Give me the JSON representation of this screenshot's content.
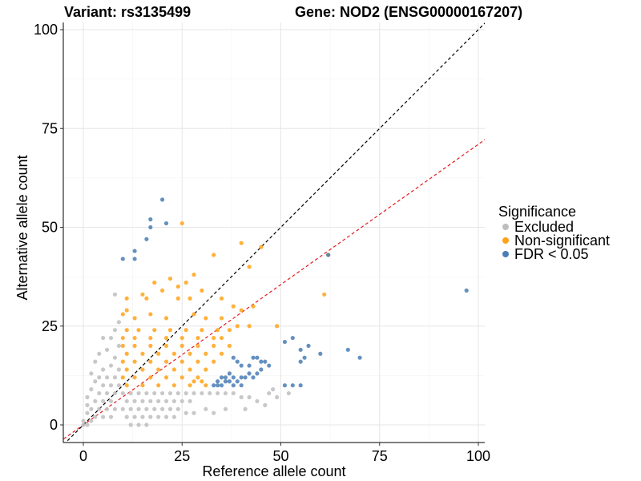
{
  "chart_data": {
    "type": "scatter",
    "title_left": "Variant: rs3135499",
    "title_right": "Gene: NOD2 (ENSG00000167207)",
    "xlabel": "Reference allele count",
    "ylabel": "Alternative allele count",
    "xlim": [
      -5,
      102
    ],
    "ylim": [
      -5,
      102
    ],
    "xticks": [
      0,
      25,
      50,
      75,
      100
    ],
    "yticks": [
      0,
      25,
      50,
      75,
      100
    ],
    "grid": true,
    "legend": {
      "title": "Significance",
      "position": "right",
      "entries": [
        {
          "label": "Excluded",
          "color": "#BEBEBE"
        },
        {
          "label": "Non-significant",
          "color": "#FFA31A"
        },
        {
          "label": "FDR < 0.05",
          "color": "#4A7EB5"
        }
      ]
    },
    "reference_lines": [
      {
        "name": "identity",
        "slope": 1.0,
        "intercept": 0,
        "color": "#000000",
        "style": "dashed"
      },
      {
        "name": "expected-ratio",
        "slope": 0.71,
        "intercept": 0,
        "color": "#E41A1C",
        "style": "dashed"
      }
    ],
    "series": [
      {
        "name": "FDR < 0.05",
        "color": "#4A7EB5",
        "points": [
          [
            20,
            57
          ],
          [
            17,
            52
          ],
          [
            21,
            51
          ],
          [
            17,
            50
          ],
          [
            16,
            47
          ],
          [
            13,
            44
          ],
          [
            13,
            42
          ],
          [
            10,
            42
          ],
          [
            97,
            34
          ],
          [
            62,
            43
          ],
          [
            57,
            20
          ],
          [
            53,
            22
          ],
          [
            55,
            19
          ],
          [
            55,
            16
          ],
          [
            56,
            17
          ],
          [
            60,
            18
          ],
          [
            67,
            19
          ],
          [
            70,
            17
          ],
          [
            51,
            21
          ],
          [
            53,
            10
          ],
          [
            51,
            10
          ],
          [
            55,
            10
          ],
          [
            38,
            17
          ],
          [
            39,
            16
          ],
          [
            40,
            15
          ],
          [
            42,
            15
          ],
          [
            43,
            17
          ],
          [
            44,
            17
          ],
          [
            45,
            16
          ],
          [
            46,
            16
          ],
          [
            47,
            15
          ],
          [
            45,
            14
          ],
          [
            44,
            13
          ],
          [
            42,
            13
          ],
          [
            43,
            12
          ],
          [
            41,
            12
          ],
          [
            33,
            10
          ],
          [
            34,
            10
          ],
          [
            35,
            10
          ],
          [
            36,
            11
          ],
          [
            37,
            11
          ],
          [
            38,
            12
          ],
          [
            39,
            11
          ],
          [
            40,
            12
          ],
          [
            38,
            10
          ],
          [
            40,
            10
          ],
          [
            37,
            13
          ],
          [
            36,
            12
          ],
          [
            35,
            12
          ],
          [
            34,
            11
          ]
        ]
      },
      {
        "name": "Non-significant",
        "color": "#FFA31A",
        "points": [
          [
            25,
            51
          ],
          [
            40,
            46
          ],
          [
            45,
            45
          ],
          [
            42,
            40
          ],
          [
            33,
            43
          ],
          [
            62,
            43
          ],
          [
            61,
            33
          ],
          [
            22,
            37
          ],
          [
            18,
            36
          ],
          [
            28,
            38
          ],
          [
            26,
            36
          ],
          [
            24,
            35
          ],
          [
            20,
            34
          ],
          [
            30,
            34
          ],
          [
            35,
            32
          ],
          [
            27,
            32
          ],
          [
            16,
            32
          ],
          [
            11,
            32
          ],
          [
            15,
            33
          ],
          [
            24,
            32
          ],
          [
            38,
            30
          ],
          [
            40,
            29
          ],
          [
            43,
            30
          ],
          [
            49,
            25
          ],
          [
            42,
            25
          ],
          [
            39,
            25
          ],
          [
            35,
            27
          ],
          [
            31,
            27
          ],
          [
            28,
            28
          ],
          [
            21,
            27
          ],
          [
            17,
            28
          ],
          [
            13,
            27
          ],
          [
            10,
            28
          ],
          [
            11,
            29
          ],
          [
            37,
            24
          ],
          [
            34,
            24
          ],
          [
            30,
            24
          ],
          [
            26,
            24
          ],
          [
            22,
            24
          ],
          [
            18,
            24
          ],
          [
            14,
            24
          ],
          [
            11,
            24
          ],
          [
            35,
            22
          ],
          [
            33,
            22
          ],
          [
            29,
            22
          ],
          [
            25,
            22
          ],
          [
            21,
            22
          ],
          [
            17,
            22
          ],
          [
            13,
            22
          ],
          [
            10,
            22
          ],
          [
            37,
            20
          ],
          [
            33,
            20
          ],
          [
            29,
            20
          ],
          [
            25,
            20
          ],
          [
            21,
            20
          ],
          [
            17,
            20
          ],
          [
            13,
            20
          ],
          [
            10,
            20
          ],
          [
            35,
            18
          ],
          [
            31,
            18
          ],
          [
            27,
            18
          ],
          [
            23,
            18
          ],
          [
            19,
            18
          ],
          [
            15,
            18
          ],
          [
            11,
            18
          ],
          [
            33,
            16
          ],
          [
            29,
            16
          ],
          [
            25,
            16
          ],
          [
            21,
            16
          ],
          [
            17,
            16
          ],
          [
            13,
            16
          ],
          [
            10,
            16
          ],
          [
            31,
            14
          ],
          [
            27,
            14
          ],
          [
            23,
            14
          ],
          [
            19,
            14
          ],
          [
            15,
            14
          ],
          [
            11,
            14
          ],
          [
            29,
            12
          ],
          [
            25,
            12
          ],
          [
            21,
            12
          ],
          [
            17,
            12
          ],
          [
            13,
            12
          ],
          [
            10,
            12
          ],
          [
            27,
            10
          ],
          [
            23,
            10
          ],
          [
            19,
            10
          ],
          [
            15,
            10
          ],
          [
            11,
            10
          ],
          [
            31,
            10
          ],
          [
            30,
            11
          ],
          [
            28,
            11
          ]
        ]
      },
      {
        "name": "Excluded",
        "color": "#BEBEBE",
        "points": [
          [
            8,
            33
          ],
          [
            9,
            26
          ],
          [
            8,
            24
          ],
          [
            7,
            22
          ],
          [
            5,
            22
          ],
          [
            9,
            20
          ],
          [
            6,
            19
          ],
          [
            4,
            18
          ],
          [
            8,
            17
          ],
          [
            3,
            16
          ],
          [
            7,
            15
          ],
          [
            5,
            14
          ],
          [
            9,
            14
          ],
          [
            2,
            13
          ],
          [
            4,
            12
          ],
          [
            6,
            12
          ],
          [
            8,
            12
          ],
          [
            3,
            11
          ],
          [
            5,
            10
          ],
          [
            7,
            10
          ],
          [
            9,
            10
          ],
          [
            2,
            9
          ],
          [
            4,
            8
          ],
          [
            6,
            8
          ],
          [
            8,
            8
          ],
          [
            1,
            7
          ],
          [
            3,
            6
          ],
          [
            5,
            6
          ],
          [
            7,
            6
          ],
          [
            1,
            5
          ],
          [
            2,
            4
          ],
          [
            4,
            4
          ],
          [
            6,
            4
          ],
          [
            8,
            4
          ],
          [
            1,
            3
          ],
          [
            3,
            2
          ],
          [
            5,
            2
          ],
          [
            7,
            2
          ],
          [
            0,
            1
          ],
          [
            2,
            1
          ],
          [
            0,
            0
          ],
          [
            1,
            0
          ],
          [
            10,
            8
          ],
          [
            12,
            8
          ],
          [
            14,
            8
          ],
          [
            16,
            8
          ],
          [
            18,
            8
          ],
          [
            20,
            8
          ],
          [
            22,
            8
          ],
          [
            24,
            8
          ],
          [
            26,
            8
          ],
          [
            28,
            8
          ],
          [
            11,
            6
          ],
          [
            13,
            6
          ],
          [
            15,
            6
          ],
          [
            17,
            6
          ],
          [
            19,
            6
          ],
          [
            21,
            6
          ],
          [
            23,
            6
          ],
          [
            25,
            6
          ],
          [
            27,
            6
          ],
          [
            10,
            4
          ],
          [
            12,
            4
          ],
          [
            14,
            4
          ],
          [
            16,
            4
          ],
          [
            18,
            4
          ],
          [
            20,
            4
          ],
          [
            22,
            4
          ],
          [
            24,
            4
          ],
          [
            11,
            2
          ],
          [
            13,
            2
          ],
          [
            15,
            2
          ],
          [
            17,
            2
          ],
          [
            19,
            2
          ],
          [
            21,
            2
          ],
          [
            23,
            2
          ],
          [
            12,
            0
          ],
          [
            14,
            0
          ],
          [
            16,
            0
          ],
          [
            30,
            8
          ],
          [
            32,
            8
          ],
          [
            34,
            8
          ],
          [
            36,
            8
          ],
          [
            38,
            8
          ],
          [
            40,
            7
          ],
          [
            42,
            7
          ],
          [
            44,
            6
          ],
          [
            46,
            5
          ],
          [
            48,
            9
          ],
          [
            47,
            8
          ],
          [
            52,
            8
          ],
          [
            49,
            7
          ],
          [
            26,
            3
          ],
          [
            28,
            3
          ],
          [
            31,
            4
          ],
          [
            33,
            3
          ],
          [
            36,
            4
          ],
          [
            41,
            4
          ]
        ]
      }
    ]
  }
}
